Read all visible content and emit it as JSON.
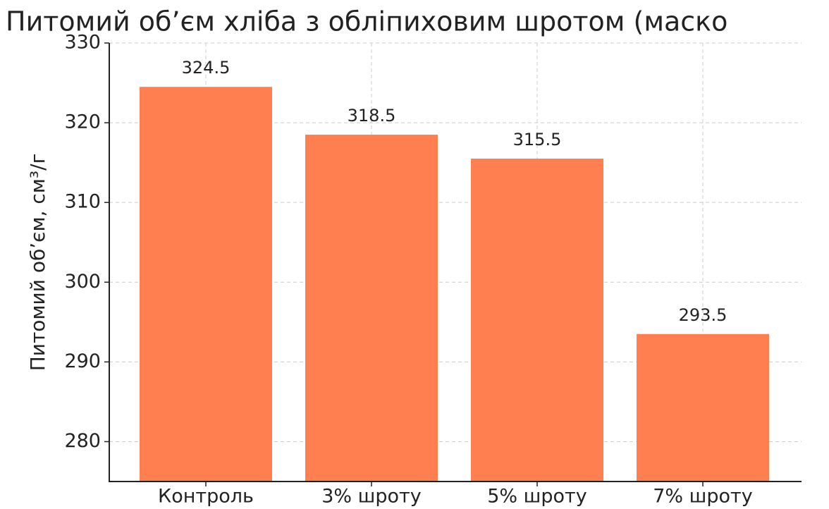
{
  "chart_data": {
    "type": "bar",
    "title": "Питомий об’єм хліба з обліпиховим шротом (маско",
    "ylabel": "Питомий об’єм, см³/г",
    "categories": [
      "Контроль",
      "3% шроту",
      "5% шроту",
      "7% шроту"
    ],
    "values": [
      324.5,
      318.5,
      315.5,
      293.5
    ],
    "value_labels": [
      "324.5",
      "318.5",
      "315.5",
      "293.5"
    ],
    "color": "#ff7f50",
    "ylim": [
      275,
      330
    ],
    "yticks": [
      280,
      290,
      300,
      310,
      320,
      330
    ],
    "grid": true
  }
}
